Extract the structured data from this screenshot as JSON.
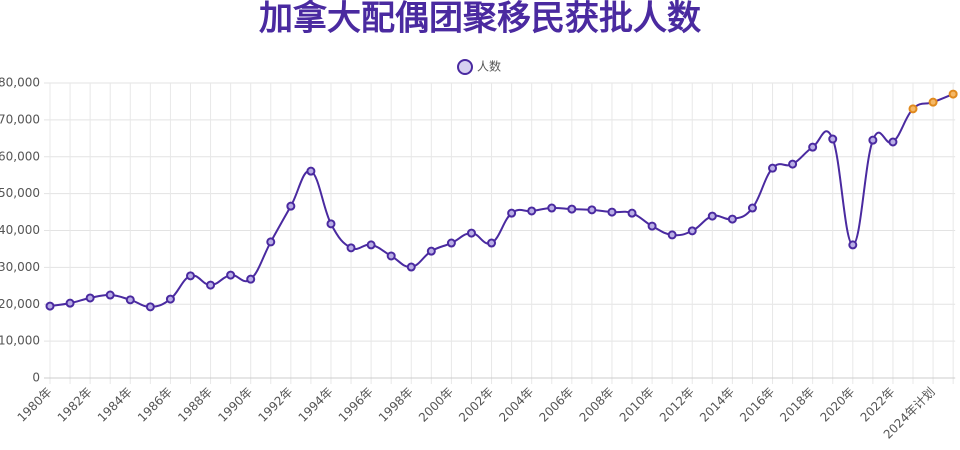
{
  "chart_data": {
    "type": "line",
    "title": "加拿大配偶团聚移民获批人数",
    "categories": [
      "1980年",
      null,
      "1982年",
      null,
      "1984年",
      null,
      "1986年",
      null,
      "1988年",
      null,
      "1990年",
      null,
      "1992年",
      null,
      "1994年",
      null,
      "1996年",
      null,
      "1998年",
      null,
      "2000年",
      null,
      "2002年",
      null,
      "2004年",
      null,
      "2006年",
      null,
      "2008年",
      null,
      "2010年",
      null,
      "2012年",
      null,
      "2014年",
      null,
      "2016年",
      null,
      "2018年",
      null,
      "2020年",
      null,
      "2022年",
      null,
      "2024年计划",
      null
    ],
    "series": [
      {
        "name": "人数",
        "color": "#4a2aa0",
        "values": [
          19500,
          20300,
          21700,
          22500,
          21200,
          19300,
          21400,
          27700,
          25200,
          27900,
          26800,
          36900,
          46600,
          56100,
          41800,
          35300,
          36100,
          33100,
          30100,
          34400,
          36600,
          39300,
          36600,
          44700,
          45300,
          46100,
          45800,
          45600,
          45000,
          44700,
          41200,
          38800,
          39900,
          43900,
          43100,
          46100,
          56900,
          58000,
          62600,
          64800,
          36100,
          64500,
          64000,
          73000,
          74800,
          77000
        ],
        "point_colors": [
          "#4a2aa0",
          "#4a2aa0",
          "#4a2aa0",
          "#4a2aa0",
          "#4a2aa0",
          "#4a2aa0",
          "#4a2aa0",
          "#4a2aa0",
          "#4a2aa0",
          "#4a2aa0",
          "#4a2aa0",
          "#4a2aa0",
          "#4a2aa0",
          "#4a2aa0",
          "#4a2aa0",
          "#4a2aa0",
          "#4a2aa0",
          "#4a2aa0",
          "#4a2aa0",
          "#4a2aa0",
          "#4a2aa0",
          "#4a2aa0",
          "#4a2aa0",
          "#4a2aa0",
          "#4a2aa0",
          "#4a2aa0",
          "#4a2aa0",
          "#4a2aa0",
          "#4a2aa0",
          "#4a2aa0",
          "#4a2aa0",
          "#4a2aa0",
          "#4a2aa0",
          "#4a2aa0",
          "#4a2aa0",
          "#4a2aa0",
          "#4a2aa0",
          "#4a2aa0",
          "#4a2aa0",
          "#4a2aa0",
          "#4a2aa0",
          "#4a2aa0",
          "#4a2aa0",
          "#e08a1e",
          "#e08a1e",
          "#e08a1e"
        ]
      }
    ],
    "ylim": [
      0,
      80000
    ],
    "yticks": [
      0,
      {
        "value": 10000,
        "label": "10,000"
      },
      {
        "value": 20000,
        "label": "20,000"
      },
      {
        "value": 30000,
        "label": "30,000"
      },
      {
        "value": 40000,
        "label": "40,000"
      },
      {
        "value": 50000,
        "label": "50,000"
      },
      {
        "value": 60000,
        "label": "60,000"
      },
      {
        "value": 70000,
        "label": "70,000"
      },
      {
        "value": 80000,
        "label": "80,000"
      }
    ],
    "grid": true
  }
}
